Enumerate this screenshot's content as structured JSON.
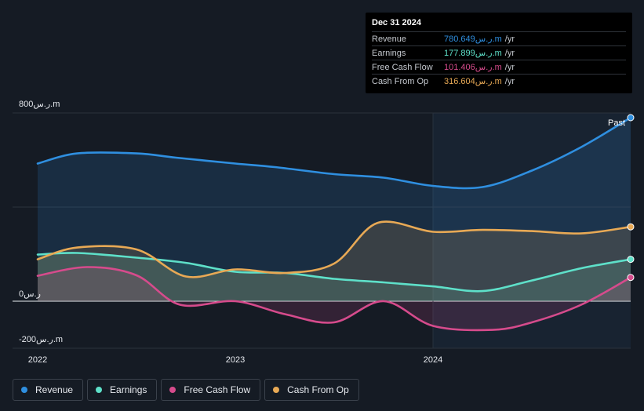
{
  "tooltip": {
    "date": "Dec 31 2024",
    "rows": [
      {
        "label": "Revenue",
        "value": "780.649ر.س.m",
        "unit": "/yr",
        "color": "#2f8fe0"
      },
      {
        "label": "Earnings",
        "value": "177.899ر.س.m",
        "unit": "/yr",
        "color": "#5ee0c9"
      },
      {
        "label": "Free Cash Flow",
        "value": "101.406ر.س.m",
        "unit": "/yr",
        "color": "#d64b8c"
      },
      {
        "label": "Cash From Op",
        "value": "316.604ر.س.m",
        "unit": "/yr",
        "color": "#e8a955"
      }
    ]
  },
  "legend": [
    {
      "label": "Revenue",
      "color": "#2f8fe0"
    },
    {
      "label": "Earnings",
      "color": "#5ee0c9"
    },
    {
      "label": "Free Cash Flow",
      "color": "#d64b8c"
    },
    {
      "label": "Cash From Op",
      "color": "#e8a955"
    }
  ],
  "chart_data": {
    "type": "area",
    "past_label": "Past",
    "y_tick_labels": [
      {
        "value": 800,
        "label": "800ر.س.m"
      },
      {
        "value": 0,
        "label": "0ر.س"
      },
      {
        "value": -200,
        "label": "-200ر.س.m"
      }
    ],
    "ylim": [
      -200,
      800
    ],
    "xlim": [
      2022.0,
      2025.0
    ],
    "x_ticks": [
      {
        "value": 2022,
        "label": "2022"
      },
      {
        "value": 2023,
        "label": "2023"
      },
      {
        "value": 2024,
        "label": "2024"
      }
    ],
    "past_start": 2024.0,
    "grid": true,
    "series": [
      {
        "name": "Revenue",
        "color": "#2f8fe0",
        "x": [
          2022.0,
          2022.2,
          2022.5,
          2022.7,
          2023.0,
          2023.2,
          2023.5,
          2023.75,
          2024.0,
          2024.25,
          2024.5,
          2024.75,
          2025.0
        ],
        "y": [
          585,
          628,
          628,
          610,
          585,
          570,
          540,
          525,
          490,
          485,
          555,
          655,
          780
        ]
      },
      {
        "name": "Earnings",
        "color": "#5ee0c9",
        "x": [
          2022.0,
          2022.2,
          2022.5,
          2022.75,
          2023.0,
          2023.25,
          2023.5,
          2023.75,
          2024.0,
          2024.25,
          2024.5,
          2024.75,
          2025.0
        ],
        "y": [
          198,
          205,
          185,
          163,
          125,
          120,
          95,
          80,
          63,
          43,
          88,
          140,
          178
        ]
      },
      {
        "name": "Free Cash Flow",
        "color": "#d64b8c",
        "x": [
          2022.0,
          2022.25,
          2022.5,
          2022.72,
          2023.0,
          2023.25,
          2023.5,
          2023.75,
          2024.0,
          2024.3,
          2024.5,
          2024.75,
          2025.0
        ],
        "y": [
          108,
          145,
          110,
          -15,
          0,
          -55,
          -90,
          0,
          -105,
          -122,
          -90,
          -15,
          101
        ]
      },
      {
        "name": "Cash From Op",
        "color": "#e8a955",
        "x": [
          2022.0,
          2022.2,
          2022.5,
          2022.75,
          2023.0,
          2023.25,
          2023.5,
          2023.72,
          2024.0,
          2024.25,
          2024.5,
          2024.75,
          2025.0
        ],
        "y": [
          178,
          228,
          220,
          105,
          135,
          120,
          160,
          333,
          295,
          303,
          298,
          288,
          316
        ]
      }
    ]
  }
}
